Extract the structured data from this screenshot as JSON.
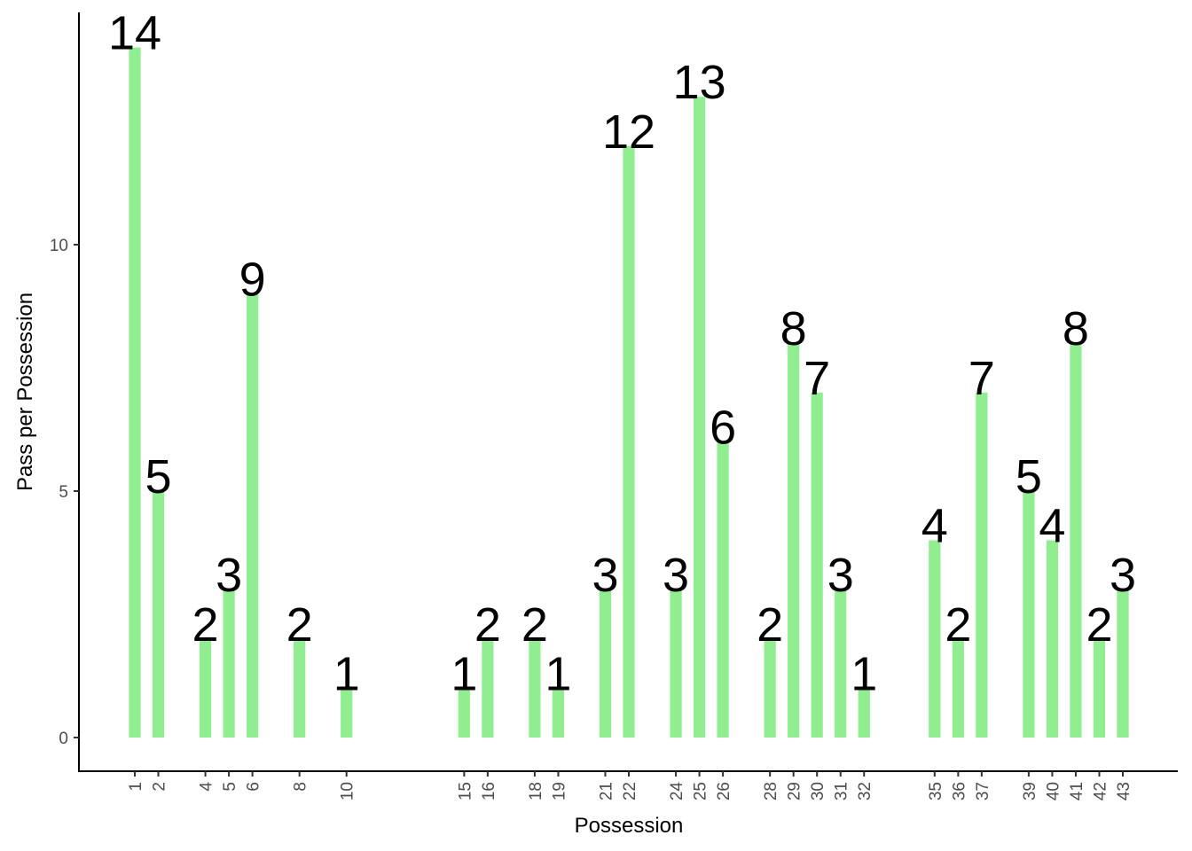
{
  "chart_data": {
    "type": "bar",
    "title": "",
    "xlabel": "Possession",
    "ylabel": "Pass per Possession",
    "x": [
      1,
      2,
      4,
      5,
      6,
      8,
      10,
      15,
      16,
      18,
      19,
      21,
      22,
      24,
      25,
      26,
      28,
      29,
      30,
      31,
      32,
      35,
      36,
      37,
      39,
      40,
      41,
      42,
      43
    ],
    "values": [
      14,
      5,
      2,
      3,
      9,
      2,
      1,
      1,
      2,
      2,
      1,
      3,
      12,
      3,
      13,
      6,
      2,
      8,
      7,
      3,
      1,
      4,
      2,
      7,
      5,
      4,
      8,
      2,
      3
    ],
    "yticks": [
      0,
      5,
      10
    ],
    "ylim": [
      -0.7,
      14.7
    ],
    "xlim": [
      -1.3,
      45.6
    ],
    "grid": false,
    "bar_color": "#90EE90",
    "data_labels": true
  }
}
